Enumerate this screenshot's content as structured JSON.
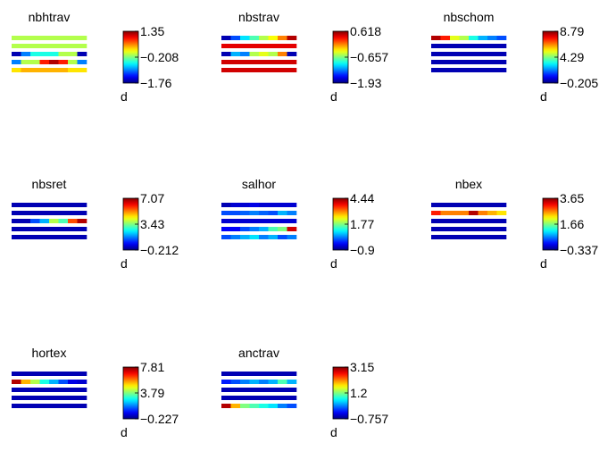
{
  "colormap": "jet",
  "colorbar_label": "d",
  "chart_data": [
    {
      "type": "heatmap",
      "title": "nbhtrav",
      "ncols": 8,
      "rows": [
        [
          0.55,
          0.55,
          0.55,
          0.55,
          0.55,
          0.55,
          0.55,
          0.55
        ],
        [
          0.55,
          0.55,
          0.55,
          0.55,
          0.55,
          0.55,
          0.55,
          0.55
        ],
        [
          0.05,
          0.25,
          0.4,
          0.4,
          0.4,
          0.55,
          0.55,
          0.05
        ],
        [
          0.25,
          0.55,
          0.55,
          0.85,
          0.95,
          0.85,
          0.55,
          0.25
        ],
        [
          0.65,
          0.7,
          0.7,
          0.7,
          0.7,
          0.7,
          0.65,
          0.65
        ]
      ],
      "colorbar": {
        "max": "1.35",
        "mid": "−0.208",
        "min": "−1.76"
      }
    },
    {
      "type": "heatmap",
      "title": "nbstrav",
      "ncols": 8,
      "rows": [
        [
          0.05,
          0.2,
          0.35,
          0.45,
          0.55,
          0.62,
          0.75,
          0.95
        ],
        [
          0.9,
          0.9,
          0.9,
          0.9,
          0.9,
          0.9,
          0.9,
          0.9
        ],
        [
          0.05,
          0.3,
          0.25,
          0.55,
          0.6,
          0.55,
          0.75,
          0.05
        ],
        [
          0.92,
          0.92,
          0.92,
          0.92,
          0.92,
          0.92,
          0.92,
          0.92
        ],
        [
          0.92,
          0.92,
          0.92,
          0.92,
          0.92,
          0.92,
          0.92,
          0.92
        ]
      ],
      "colorbar": {
        "max": "0.618",
        "mid": "−0.657",
        "min": "−1.93"
      }
    },
    {
      "type": "heatmap",
      "title": "nbschom",
      "ncols": 8,
      "rows": [
        [
          0.95,
          0.85,
          0.6,
          0.55,
          0.4,
          0.3,
          0.25,
          0.2
        ],
        [
          0.05,
          0.05,
          0.05,
          0.05,
          0.05,
          0.05,
          0.05,
          0.05
        ],
        [
          0.05,
          0.05,
          0.05,
          0.05,
          0.05,
          0.05,
          0.05,
          0.05
        ],
        [
          0.05,
          0.05,
          0.05,
          0.05,
          0.05,
          0.05,
          0.05,
          0.05
        ],
        [
          0.05,
          0.05,
          0.05,
          0.05,
          0.05,
          0.05,
          0.05,
          0.05
        ]
      ],
      "colorbar": {
        "max": "8.79",
        "mid": "4.29",
        "min": "−0.205"
      }
    },
    {
      "type": "heatmap",
      "title": "nbsret",
      "ncols": 8,
      "rows": [
        [
          0.05,
          0.05,
          0.05,
          0.05,
          0.05,
          0.05,
          0.05,
          0.05
        ],
        [
          0.05,
          0.05,
          0.05,
          0.05,
          0.05,
          0.05,
          0.05,
          0.05
        ],
        [
          0.05,
          0.05,
          0.2,
          0.3,
          0.55,
          0.45,
          0.8,
          0.95
        ],
        [
          0.05,
          0.05,
          0.05,
          0.05,
          0.05,
          0.05,
          0.05,
          0.05
        ],
        [
          0.05,
          0.05,
          0.05,
          0.05,
          0.05,
          0.05,
          0.05,
          0.05
        ]
      ],
      "colorbar": {
        "max": "7.07",
        "mid": "3.43",
        "min": "−0.212"
      }
    },
    {
      "type": "heatmap",
      "title": "salhor",
      "ncols": 8,
      "rows": [
        [
          0.05,
          0.08,
          0.08,
          0.1,
          0.08,
          0.08,
          0.08,
          0.08
        ],
        [
          0.2,
          0.2,
          0.22,
          0.25,
          0.22,
          0.2,
          0.3,
          0.25
        ],
        [
          0.08,
          0.08,
          0.08,
          0.08,
          0.08,
          0.08,
          0.08,
          0.08
        ],
        [
          0.12,
          0.12,
          0.2,
          0.25,
          0.3,
          0.45,
          0.5,
          0.92
        ],
        [
          0.2,
          0.25,
          0.3,
          0.35,
          0.25,
          0.3,
          0.2,
          0.25
        ]
      ],
      "colorbar": {
        "max": "4.44",
        "mid": "1.77",
        "min": "−0.9"
      }
    },
    {
      "type": "heatmap",
      "title": "nbex",
      "ncols": 8,
      "rows": [
        [
          0.05,
          0.05,
          0.05,
          0.05,
          0.05,
          0.05,
          0.05,
          0.05
        ],
        [
          0.85,
          0.75,
          0.75,
          0.75,
          0.95,
          0.75,
          0.7,
          0.65
        ],
        [
          0.05,
          0.05,
          0.05,
          0.05,
          0.05,
          0.05,
          0.05,
          0.05
        ],
        [
          0.05,
          0.05,
          0.05,
          0.05,
          0.05,
          0.05,
          0.05,
          0.05
        ],
        [
          0.05,
          0.05,
          0.05,
          0.05,
          0.05,
          0.05,
          0.05,
          0.05
        ]
      ],
      "colorbar": {
        "max": "3.65",
        "mid": "1.66",
        "min": "−0.337"
      }
    },
    {
      "type": "heatmap",
      "title": "hortex",
      "ncols": 8,
      "rows": [
        [
          0.05,
          0.05,
          0.05,
          0.05,
          0.05,
          0.05,
          0.05,
          0.05
        ],
        [
          0.95,
          0.7,
          0.55,
          0.4,
          0.3,
          0.2,
          0.1,
          0.08
        ],
        [
          0.05,
          0.05,
          0.05,
          0.05,
          0.05,
          0.05,
          0.05,
          0.05
        ],
        [
          0.05,
          0.05,
          0.05,
          0.05,
          0.05,
          0.05,
          0.05,
          0.05
        ],
        [
          0.05,
          0.05,
          0.05,
          0.05,
          0.05,
          0.05,
          0.05,
          0.05
        ]
      ],
      "colorbar": {
        "max": "7.81",
        "mid": "3.79",
        "min": "−0.227"
      }
    },
    {
      "type": "heatmap",
      "title": "anctrav",
      "ncols": 8,
      "rows": [
        [
          0.05,
          0.05,
          0.05,
          0.05,
          0.05,
          0.05,
          0.05,
          0.05
        ],
        [
          0.15,
          0.2,
          0.25,
          0.3,
          0.25,
          0.3,
          0.45,
          0.3
        ],
        [
          0.05,
          0.05,
          0.05,
          0.05,
          0.05,
          0.05,
          0.05,
          0.05
        ],
        [
          0.05,
          0.05,
          0.05,
          0.05,
          0.05,
          0.05,
          0.05,
          0.05
        ],
        [
          0.95,
          0.7,
          0.5,
          0.45,
          0.4,
          0.35,
          0.25,
          0.2
        ]
      ],
      "colorbar": {
        "max": "3.15",
        "mid": "1.2",
        "min": "−0.757"
      }
    }
  ]
}
